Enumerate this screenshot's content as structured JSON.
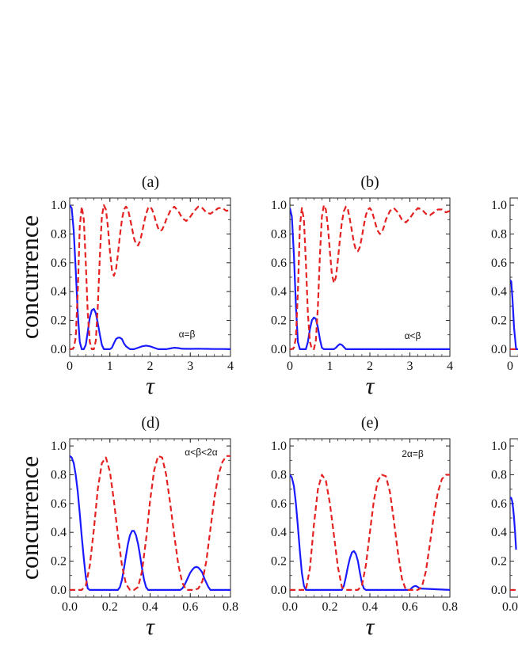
{
  "chart_data": [
    {
      "type": "line",
      "title": "(a)",
      "annotation": "α=β",
      "xlabel": "τ",
      "ylabel": "concurrence",
      "xlim": [
        0,
        4
      ],
      "ylim": [
        -0.05,
        1.05
      ],
      "xticks": [
        0,
        1,
        2,
        3,
        4
      ],
      "xtick_labels": [
        "0",
        "1",
        "2",
        "3",
        "4"
      ],
      "yticks": [
        0,
        0.2,
        0.4,
        0.6,
        0.8,
        1.0
      ],
      "ytick_labels": [
        "0.0",
        "0.2",
        "0.4",
        "0.6",
        "0.8",
        "1.0"
      ],
      "series": [
        {
          "name": "solid",
          "color": "#1a1aff",
          "dash": "solid",
          "x": [
            0,
            0.05,
            0.1,
            0.15,
            0.2,
            0.25,
            0.3,
            0.35,
            0.4,
            0.45,
            0.5,
            0.55,
            0.6,
            0.65,
            0.7,
            0.75,
            0.8,
            0.85,
            0.9,
            0.95,
            1.0,
            1.05,
            1.1,
            1.15,
            1.2,
            1.25,
            1.3,
            1.35,
            1.4,
            1.45,
            1.5,
            1.6,
            1.7,
            1.8,
            1.9,
            2.0,
            2.1,
            2.2,
            2.3,
            2.4,
            2.5,
            2.6,
            2.7,
            2.8,
            3.0,
            3.2,
            3.4,
            3.6,
            3.8,
            4.0
          ],
          "y": [
            1.0,
            0.98,
            0.82,
            0.55,
            0.25,
            0.05,
            0.0,
            0.0,
            0.03,
            0.12,
            0.22,
            0.27,
            0.28,
            0.25,
            0.18,
            0.1,
            0.03,
            0.0,
            0.0,
            0.0,
            0.0,
            0.01,
            0.04,
            0.07,
            0.08,
            0.08,
            0.07,
            0.04,
            0.02,
            0.01,
            0.0,
            0.0,
            0.01,
            0.02,
            0.025,
            0.02,
            0.01,
            0.0,
            0.0,
            0.0,
            0.005,
            0.01,
            0.008,
            0.003,
            0.002,
            0.003,
            0.002,
            0.001,
            0.001,
            0.0
          ]
        },
        {
          "name": "dashed",
          "color": "#e52222",
          "dash": "dashed",
          "x": [
            0,
            0.05,
            0.1,
            0.15,
            0.2,
            0.25,
            0.3,
            0.35,
            0.4,
            0.45,
            0.5,
            0.55,
            0.6,
            0.65,
            0.7,
            0.75,
            0.8,
            0.85,
            0.9,
            0.95,
            1.0,
            1.05,
            1.1,
            1.15,
            1.2,
            1.25,
            1.3,
            1.35,
            1.4,
            1.45,
            1.5,
            1.55,
            1.6,
            1.65,
            1.7,
            1.75,
            1.8,
            1.85,
            1.9,
            1.95,
            2.0,
            2.05,
            2.1,
            2.15,
            2.2,
            2.25,
            2.3,
            2.35,
            2.4,
            2.5,
            2.6,
            2.7,
            2.8,
            2.9,
            3.0,
            3.1,
            3.2,
            3.3,
            3.4,
            3.5,
            3.6,
            3.7,
            3.8,
            3.9,
            4.0
          ],
          "y": [
            0.0,
            0.0,
            0.01,
            0.08,
            0.4,
            0.85,
            0.99,
            0.9,
            0.6,
            0.25,
            0.05,
            0.0,
            0.0,
            0.06,
            0.3,
            0.65,
            0.92,
            1.0,
            0.97,
            0.85,
            0.68,
            0.55,
            0.51,
            0.55,
            0.66,
            0.79,
            0.9,
            0.97,
            0.99,
            0.97,
            0.91,
            0.84,
            0.77,
            0.73,
            0.72,
            0.75,
            0.81,
            0.88,
            0.94,
            0.98,
            0.99,
            0.97,
            0.93,
            0.88,
            0.84,
            0.82,
            0.83,
            0.86,
            0.9,
            0.96,
            0.99,
            0.96,
            0.91,
            0.89,
            0.92,
            0.96,
            0.99,
            0.98,
            0.95,
            0.94,
            0.96,
            0.98,
            0.98,
            0.96,
            0.97
          ]
        }
      ]
    },
    {
      "type": "line",
      "title": "(b)",
      "annotation": "α<β",
      "xlabel": "τ",
      "ylabel": "",
      "xlim": [
        0,
        4
      ],
      "ylim": [
        -0.05,
        1.05
      ],
      "xticks": [
        0,
        1,
        2,
        3,
        4
      ],
      "xtick_labels": [
        "0",
        "1",
        "2",
        "3",
        "4"
      ],
      "yticks": [
        0,
        0.2,
        0.4,
        0.6,
        0.8,
        1.0
      ],
      "ytick_labels": [
        "0.0",
        "0.2",
        "0.4",
        "0.6",
        "0.8",
        "1.0"
      ],
      "series": [
        {
          "name": "solid",
          "color": "#1a1aff",
          "dash": "solid",
          "x": [
            0,
            0.05,
            0.1,
            0.15,
            0.2,
            0.25,
            0.3,
            0.35,
            0.4,
            0.45,
            0.5,
            0.55,
            0.6,
            0.65,
            0.7,
            0.75,
            0.8,
            0.85,
            0.9,
            1.0,
            1.1,
            1.15,
            1.2,
            1.25,
            1.3,
            1.35,
            1.4,
            1.5,
            2.0,
            3.0,
            4.0
          ],
          "y": [
            0.98,
            0.92,
            0.65,
            0.3,
            0.05,
            0.0,
            0.0,
            0.0,
            0.0,
            0.05,
            0.14,
            0.2,
            0.22,
            0.21,
            0.15,
            0.07,
            0.01,
            0.0,
            0.0,
            0.0,
            0.0,
            0.01,
            0.025,
            0.035,
            0.03,
            0.015,
            0.0,
            0.0,
            0.0,
            0.0,
            0.0
          ]
        },
        {
          "name": "dashed",
          "color": "#e52222",
          "dash": "dashed",
          "x": [
            0,
            0.05,
            0.1,
            0.15,
            0.2,
            0.25,
            0.3,
            0.35,
            0.4,
            0.45,
            0.5,
            0.55,
            0.6,
            0.65,
            0.7,
            0.75,
            0.8,
            0.85,
            0.9,
            0.95,
            1.0,
            1.05,
            1.1,
            1.15,
            1.2,
            1.25,
            1.3,
            1.35,
            1.4,
            1.45,
            1.5,
            1.55,
            1.6,
            1.65,
            1.7,
            1.75,
            1.8,
            1.85,
            1.9,
            1.95,
            2.0,
            2.05,
            2.1,
            2.15,
            2.2,
            2.25,
            2.3,
            2.35,
            2.4,
            2.5,
            2.6,
            2.7,
            2.8,
            2.9,
            3.0,
            3.1,
            3.2,
            3.3,
            3.4,
            3.5,
            3.6,
            3.7,
            3.8,
            3.9,
            4.0
          ],
          "y": [
            0.0,
            0.0,
            0.01,
            0.08,
            0.4,
            0.85,
            0.98,
            0.9,
            0.6,
            0.25,
            0.05,
            0.0,
            0.0,
            0.06,
            0.3,
            0.65,
            0.92,
            1.0,
            0.97,
            0.85,
            0.68,
            0.52,
            0.46,
            0.5,
            0.62,
            0.76,
            0.88,
            0.96,
            0.99,
            0.97,
            0.9,
            0.82,
            0.74,
            0.69,
            0.68,
            0.71,
            0.78,
            0.86,
            0.93,
            0.97,
            0.98,
            0.96,
            0.91,
            0.86,
            0.82,
            0.8,
            0.81,
            0.85,
            0.9,
            0.96,
            0.98,
            0.95,
            0.9,
            0.88,
            0.91,
            0.95,
            0.98,
            0.97,
            0.94,
            0.93,
            0.95,
            0.97,
            0.97,
            0.95,
            0.96
          ]
        }
      ]
    },
    {
      "type": "line",
      "title": "",
      "annotation": "",
      "xlabel": "",
      "ylabel": "",
      "xlim": [
        0,
        4
      ],
      "ylim": [
        -0.05,
        1.05
      ],
      "xticks": [
        0
      ],
      "xtick_labels": [
        "0"
      ],
      "yticks": [
        0,
        0.2,
        0.4,
        0.6,
        0.8,
        1.0
      ],
      "ytick_labels": [
        "0.0",
        "0.2",
        "0.4",
        "0.6",
        "0.8",
        "1.0"
      ],
      "series": [
        {
          "name": "solid",
          "color": "#1a1aff",
          "dash": "solid",
          "x": [
            0,
            0.03,
            0.06,
            0.1,
            0.15,
            0.2
          ],
          "y": [
            0.48,
            0.47,
            0.35,
            0.15,
            0.0,
            0.0
          ]
        },
        {
          "name": "dashed",
          "color": "#e52222",
          "dash": "dashed",
          "x": [
            0,
            0.1,
            0.2
          ],
          "y": [
            0.0,
            0.0,
            0.0
          ]
        }
      ]
    },
    {
      "type": "line",
      "title": "(d)",
      "annotation": "α<β<2α",
      "xlabel": "τ",
      "ylabel": "concurrence",
      "xlim": [
        0,
        0.8
      ],
      "ylim": [
        -0.05,
        1.05
      ],
      "xticks": [
        0,
        0.2,
        0.4,
        0.6,
        0.8
      ],
      "xtick_labels": [
        "0.0",
        "0.2",
        "0.4",
        "0.6",
        "0.8"
      ],
      "yticks": [
        0,
        0.2,
        0.4,
        0.6,
        0.8,
        1.0
      ],
      "ytick_labels": [
        "0.0",
        "0.2",
        "0.4",
        "0.6",
        "0.8",
        "1.0"
      ],
      "series": [
        {
          "name": "solid",
          "color": "#1a1aff",
          "dash": "solid",
          "x": [
            0,
            0.01,
            0.02,
            0.03,
            0.04,
            0.05,
            0.06,
            0.07,
            0.08,
            0.09,
            0.1,
            0.24,
            0.25,
            0.26,
            0.27,
            0.28,
            0.29,
            0.3,
            0.31,
            0.32,
            0.33,
            0.34,
            0.35,
            0.36,
            0.37,
            0.38,
            0.39,
            0.55,
            0.56,
            0.57,
            0.58,
            0.59,
            0.6,
            0.61,
            0.62,
            0.63,
            0.64,
            0.65,
            0.66,
            0.67,
            0.68,
            0.69,
            0.7,
            0.8
          ],
          "y": [
            0.93,
            0.92,
            0.88,
            0.8,
            0.68,
            0.53,
            0.37,
            0.22,
            0.09,
            0.01,
            0.0,
            0.0,
            0.02,
            0.07,
            0.15,
            0.24,
            0.32,
            0.38,
            0.41,
            0.41,
            0.38,
            0.32,
            0.24,
            0.15,
            0.07,
            0.02,
            0.0,
            0.0,
            0.01,
            0.03,
            0.06,
            0.09,
            0.12,
            0.14,
            0.155,
            0.16,
            0.155,
            0.14,
            0.12,
            0.08,
            0.05,
            0.02,
            0.0,
            0.0
          ]
        },
        {
          "name": "dashed",
          "color": "#e52222",
          "dash": "dashed",
          "x": [
            0,
            0.06,
            0.08,
            0.1,
            0.12,
            0.14,
            0.16,
            0.18,
            0.2,
            0.22,
            0.24,
            0.26,
            0.28,
            0.3,
            0.32,
            0.34,
            0.36,
            0.38,
            0.4,
            0.42,
            0.44,
            0.46,
            0.48,
            0.5,
            0.52,
            0.54,
            0.56,
            0.58,
            0.6,
            0.62,
            0.64,
            0.66,
            0.68,
            0.7,
            0.72,
            0.74,
            0.76,
            0.78,
            0.8
          ],
          "y": [
            0.0,
            0.0,
            0.03,
            0.17,
            0.42,
            0.7,
            0.88,
            0.92,
            0.82,
            0.62,
            0.38,
            0.17,
            0.04,
            0.0,
            0.0,
            0.02,
            0.13,
            0.35,
            0.62,
            0.83,
            0.93,
            0.92,
            0.8,
            0.6,
            0.38,
            0.18,
            0.05,
            0.0,
            0.0,
            0.0,
            0.01,
            0.06,
            0.2,
            0.42,
            0.64,
            0.8,
            0.89,
            0.93,
            0.93
          ]
        }
      ]
    },
    {
      "type": "line",
      "title": "(e)",
      "annotation": "2α=β",
      "xlabel": "τ",
      "ylabel": "",
      "xlim": [
        0,
        0.8
      ],
      "ylim": [
        -0.05,
        1.05
      ],
      "xticks": [
        0,
        0.2,
        0.4,
        0.6,
        0.8
      ],
      "xtick_labels": [
        "0.0",
        "0.2",
        "0.4",
        "0.6",
        "0.8"
      ],
      "yticks": [
        0,
        0.2,
        0.4,
        0.6,
        0.8,
        1.0
      ],
      "ytick_labels": [
        "0.0",
        "0.2",
        "0.4",
        "0.6",
        "0.8",
        "1.0"
      ],
      "series": [
        {
          "name": "solid",
          "color": "#1a1aff",
          "dash": "solid",
          "x": [
            0,
            0.01,
            0.02,
            0.03,
            0.04,
            0.05,
            0.06,
            0.07,
            0.08,
            0.09,
            0.26,
            0.27,
            0.28,
            0.29,
            0.3,
            0.31,
            0.32,
            0.33,
            0.34,
            0.35,
            0.36,
            0.37,
            0.38,
            0.6,
            0.61,
            0.62,
            0.63,
            0.64,
            0.65,
            0.8
          ],
          "y": [
            0.8,
            0.78,
            0.72,
            0.6,
            0.44,
            0.27,
            0.12,
            0.03,
            0.0,
            0.0,
            0.0,
            0.03,
            0.09,
            0.16,
            0.22,
            0.26,
            0.27,
            0.25,
            0.2,
            0.12,
            0.05,
            0.01,
            0.0,
            0.0,
            0.015,
            0.025,
            0.028,
            0.02,
            0.01,
            0.0
          ]
        },
        {
          "name": "dashed",
          "color": "#e52222",
          "dash": "dashed",
          "x": [
            0,
            0.08,
            0.1,
            0.12,
            0.14,
            0.16,
            0.18,
            0.2,
            0.22,
            0.24,
            0.26,
            0.28,
            0.3,
            0.32,
            0.34,
            0.36,
            0.38,
            0.4,
            0.42,
            0.44,
            0.46,
            0.48,
            0.5,
            0.52,
            0.54,
            0.56,
            0.58,
            0.6,
            0.62,
            0.64,
            0.66,
            0.68,
            0.7,
            0.72,
            0.74,
            0.76,
            0.78,
            0.8
          ],
          "y": [
            0.0,
            0.0,
            0.15,
            0.45,
            0.7,
            0.8,
            0.76,
            0.6,
            0.38,
            0.16,
            0.02,
            0.0,
            0.0,
            0.0,
            0.0,
            0.03,
            0.17,
            0.4,
            0.62,
            0.76,
            0.8,
            0.79,
            0.68,
            0.48,
            0.26,
            0.08,
            0.0,
            0.0,
            0.0,
            0.0,
            0.02,
            0.13,
            0.32,
            0.52,
            0.68,
            0.77,
            0.8,
            0.8
          ]
        }
      ]
    },
    {
      "type": "line",
      "title": "",
      "annotation": "",
      "xlabel": "",
      "ylabel": "",
      "xlim": [
        0,
        0.8
      ],
      "ylim": [
        -0.05,
        1.05
      ],
      "xticks": [
        0
      ],
      "xtick_labels": [
        "0.0"
      ],
      "yticks": [
        0,
        0.2,
        0.4,
        0.6,
        0.8,
        1.0
      ],
      "ytick_labels": [
        "0.0",
        "0.2",
        "0.4",
        "0.6",
        "0.8",
        "1.0"
      ],
      "series": [
        {
          "name": "solid",
          "color": "#1a1aff",
          "dash": "solid",
          "x": [
            0,
            0.005,
            0.01,
            0.015,
            0.02,
            0.025,
            0.03
          ],
          "y": [
            0.64,
            0.64,
            0.62,
            0.57,
            0.5,
            0.4,
            0.28
          ]
        },
        {
          "name": "dashed",
          "color": "#e52222",
          "dash": "dashed",
          "x": [
            0,
            0.03
          ],
          "y": [
            0.0,
            0.0
          ]
        }
      ]
    }
  ]
}
